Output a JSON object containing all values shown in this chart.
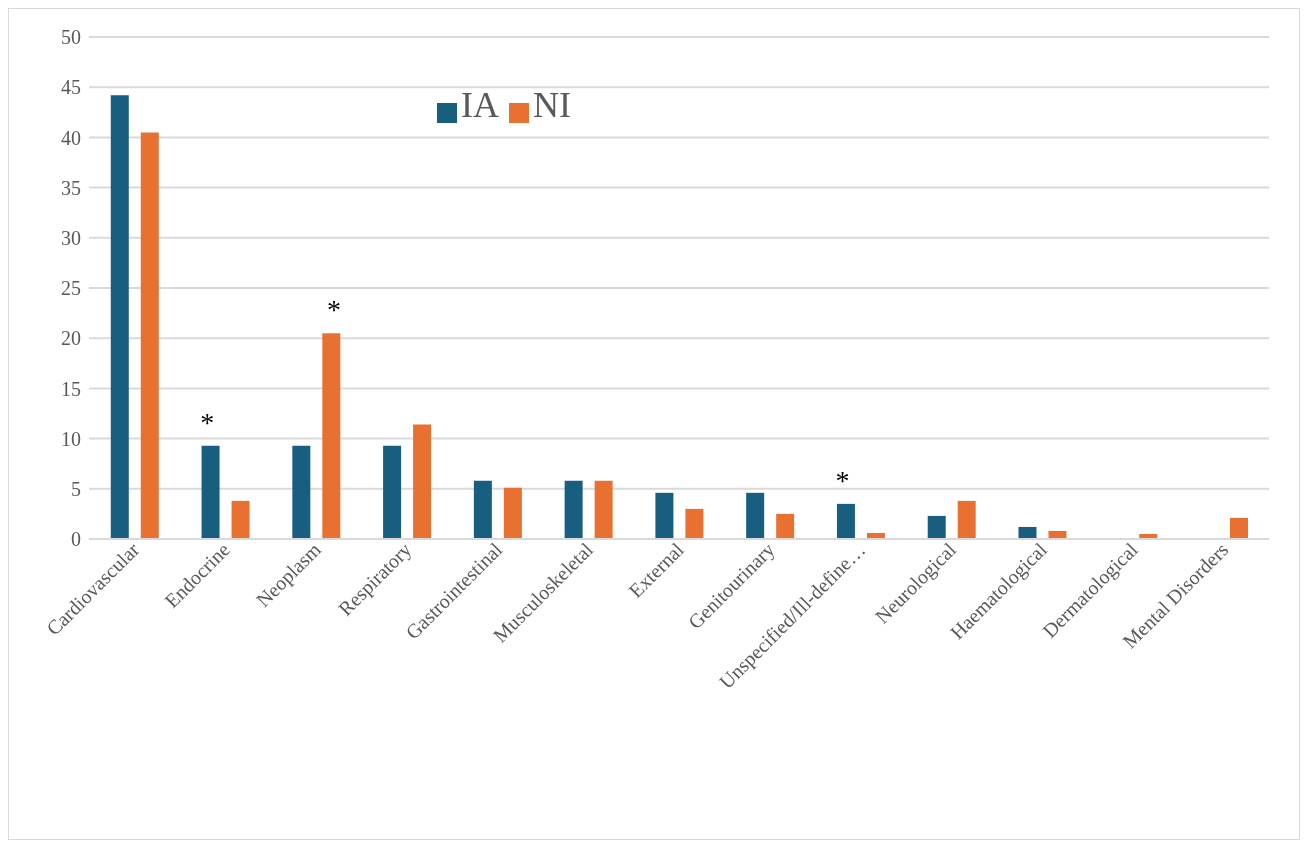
{
  "chart_data": {
    "type": "bar",
    "categories": [
      "Cardiovascular",
      "Endocrine",
      "Neoplasm",
      "Respiratory",
      "Gastrointestinal",
      "Musculoskeletal",
      "External",
      "Genitourinary",
      "Unspecified/Ill-define…",
      "Neurological",
      "Haematological",
      "Dermatological",
      "Mental Disorders"
    ],
    "series": [
      {
        "name": "IA",
        "color": "#175e7f",
        "values": [
          44.2,
          9.3,
          9.3,
          9.3,
          5.8,
          5.8,
          4.6,
          4.6,
          3.5,
          2.3,
          1.2,
          0,
          0
        ]
      },
      {
        "name": "NI",
        "color": "#e87132",
        "values": [
          40.5,
          3.8,
          20.5,
          11.4,
          5.1,
          5.8,
          3.0,
          2.5,
          0.6,
          3.8,
          0.8,
          0.5,
          2.1
        ]
      }
    ],
    "ylim": [
      0,
      50
    ],
    "yticks": [
      0,
      5,
      10,
      15,
      20,
      25,
      30,
      35,
      40,
      45,
      50
    ],
    "grid": "y",
    "legend": "top",
    "annotations": [
      "*",
      "*",
      "*"
    ]
  }
}
